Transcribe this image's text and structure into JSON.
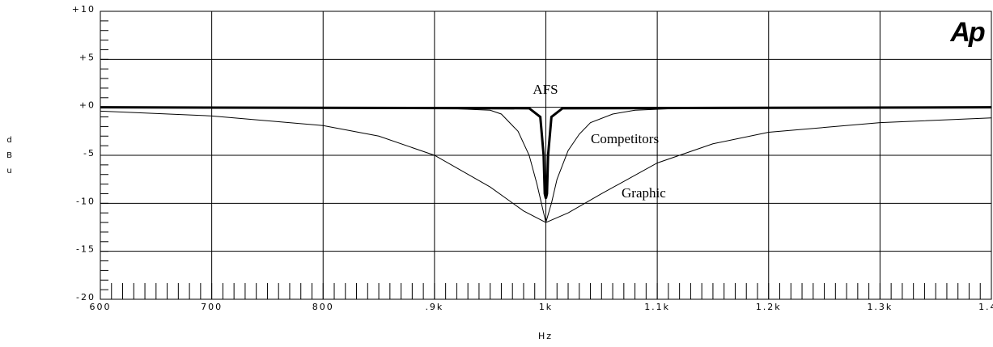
{
  "chart_data": {
    "type": "line",
    "logo": "Ap",
    "x_label": "Hz",
    "y_label": "dBu",
    "xlim": [
      600,
      1400
    ],
    "xticks": [
      600,
      700,
      800,
      {
        "value": 900,
        "label": ".9k"
      },
      {
        "value": 1000,
        "label": "1k"
      },
      {
        "value": 1100,
        "label": "1.1k"
      },
      {
        "value": 1200,
        "label": "1.2k"
      },
      {
        "value": 1300,
        "label": "1.3k"
      },
      {
        "value": 1400,
        "label": "1.4k"
      }
    ],
    "ylim": [
      -20,
      10
    ],
    "yticks": [
      {
        "value": -20,
        "label": "-20"
      },
      {
        "value": -15,
        "label": "-15"
      },
      {
        "value": -10,
        "label": "-10"
      },
      {
        "value": -5,
        "label": "-5"
      },
      {
        "value": 0,
        "label": "+0"
      },
      {
        "value": 5,
        "label": "+5"
      },
      {
        "value": 10,
        "label": "+10"
      }
    ],
    "grid": true,
    "series": [
      {
        "name": "AFS",
        "color": "#000000",
        "x": [
          600,
          985,
          995,
          998,
          999,
          1000,
          1001,
          1002,
          1005,
          1015,
          1400
        ],
        "values": [
          0,
          -0.1,
          -1,
          -5,
          -9,
          -9.5,
          -9,
          -5,
          -1,
          -0.1,
          0
        ]
      },
      {
        "name": "Competitors",
        "color": "#000000",
        "x": [
          850,
          900,
          950,
          960,
          975,
          985,
          992,
          1000,
          1005,
          1010,
          1020,
          1030,
          1040,
          1060,
          1080,
          1120,
          1190
        ],
        "values": [
          0,
          -0.05,
          -0.3,
          -0.7,
          -2.5,
          -5,
          -8,
          -12,
          -10,
          -7.5,
          -4.5,
          -2.8,
          -1.6,
          -0.7,
          -0.3,
          -0.1,
          0
        ]
      },
      {
        "name": "Graphic",
        "color": "#000000",
        "x": [
          600,
          700,
          800,
          850,
          900,
          950,
          980,
          1000,
          1020,
          1050,
          1100,
          1150,
          1200,
          1300,
          1400
        ],
        "values": [
          -0.4,
          -0.9,
          -1.9,
          -3,
          -5,
          -8.3,
          -10.8,
          -12,
          -11,
          -9,
          -5.8,
          -3.8,
          -2.6,
          -1.6,
          -1.1
        ]
      }
    ]
  }
}
